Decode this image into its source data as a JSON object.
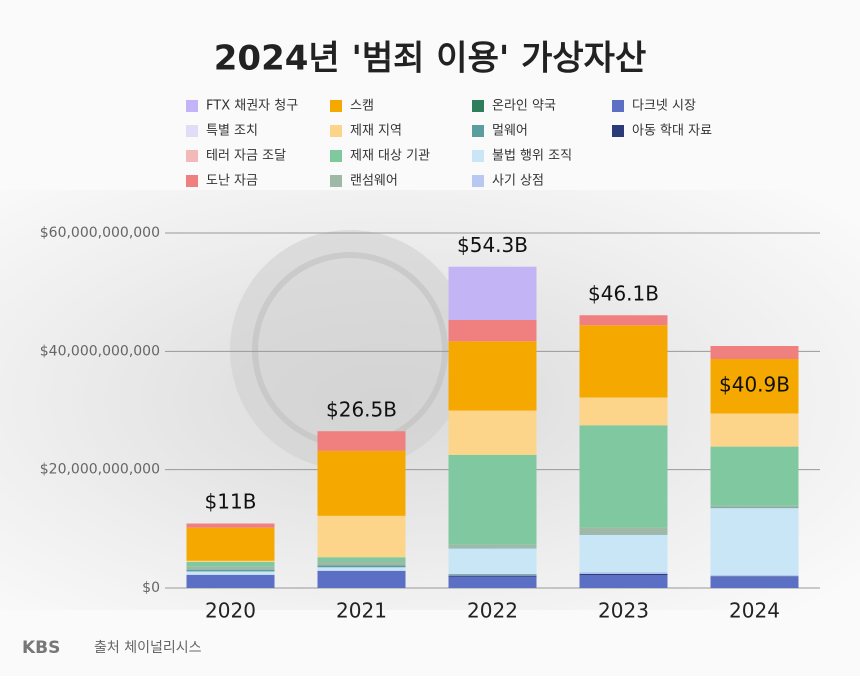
{
  "chart_data": {
    "type": "stacked_bar",
    "title": "2024년 '범죄 이용' 가상자산",
    "categories": [
      "2020",
      "2021",
      "2022",
      "2023",
      "2024"
    ],
    "series": [
      {
        "name": "다크넷 시장",
        "color": "#5b6fc4",
        "values": [
          2200000000,
          2900000000,
          1900000000,
          2200000000,
          1900000000
        ]
      },
      {
        "name": "아동 학대 자료",
        "color": "#2b3a78",
        "values": [
          0,
          0,
          200000000,
          200000000,
          100000000
        ]
      },
      {
        "name": "사기 상점",
        "color": "#b8c8f0",
        "values": [
          100000000,
          100000000,
          100000000,
          300000000,
          200000000
        ]
      },
      {
        "name": "온라인 약국",
        "color": "#2e7d5b",
        "values": [
          0,
          0,
          100000000,
          0,
          0
        ]
      },
      {
        "name": "불법 행위 조직",
        "color": "#c8e6f5",
        "values": [
          500000000,
          500000000,
          4400000000,
          6300000000,
          11300000000
        ]
      },
      {
        "name": "멀웨어",
        "color": "#5a9ea0",
        "values": [
          300000000,
          300000000,
          100000000,
          100000000,
          100000000
        ]
      },
      {
        "name": "랜섬웨어",
        "color": "#9fb8a8",
        "values": [
          500000000,
          600000000,
          500000000,
          1100000000,
          300000000
        ]
      },
      {
        "name": "제재 대상 기관",
        "color": "#7fc8a0",
        "values": [
          800000000,
          800000000,
          15200000000,
          17300000000,
          10000000000
        ]
      },
      {
        "name": "테러 자금 조달",
        "color": "#f4b8b8",
        "values": [
          0,
          0,
          0,
          0,
          0
        ]
      },
      {
        "name": "특별 조치",
        "color": "#e2dcf7",
        "values": [
          0,
          0,
          0,
          0,
          0
        ]
      },
      {
        "name": "제재 지역",
        "color": "#fcd58a",
        "values": [
          200000000,
          7000000000,
          7500000000,
          4700000000,
          5600000000
        ]
      },
      {
        "name": "스캠",
        "color": "#f5a800",
        "values": [
          5600000000,
          11000000000,
          11700000000,
          12200000000,
          9200000000
        ]
      },
      {
        "name": "도난 자금",
        "color": "#f08080",
        "values": [
          700000000,
          3300000000,
          3600000000,
          1700000000,
          2200000000
        ]
      },
      {
        "name": "FTX 채권자 청구",
        "color": "#c3b5f5",
        "values": [
          0,
          0,
          9000000000,
          0,
          0
        ]
      }
    ],
    "annotations": [
      {
        "text": "$11B",
        "value": 11000000000
      },
      {
        "text": "$26.5B",
        "value": 26500000000
      },
      {
        "text": "$54.3B",
        "value": 54300000000
      },
      {
        "text": "$46.1B",
        "value": 46100000000
      },
      {
        "text": "$40.9B",
        "value": 40900000000
      }
    ],
    "ylim": [
      0,
      60000000000
    ],
    "yticks": [
      {
        "value": 0,
        "label": "$0"
      },
      {
        "value": 20000000000,
        "label": "$20,000,000,000"
      },
      {
        "value": 40000000000,
        "label": "$40,000,000,000"
      },
      {
        "value": 60000000000,
        "label": "$60,000,000,000"
      }
    ],
    "grid": true,
    "logo": "KBS",
    "source": "출처 체이널리시스"
  }
}
